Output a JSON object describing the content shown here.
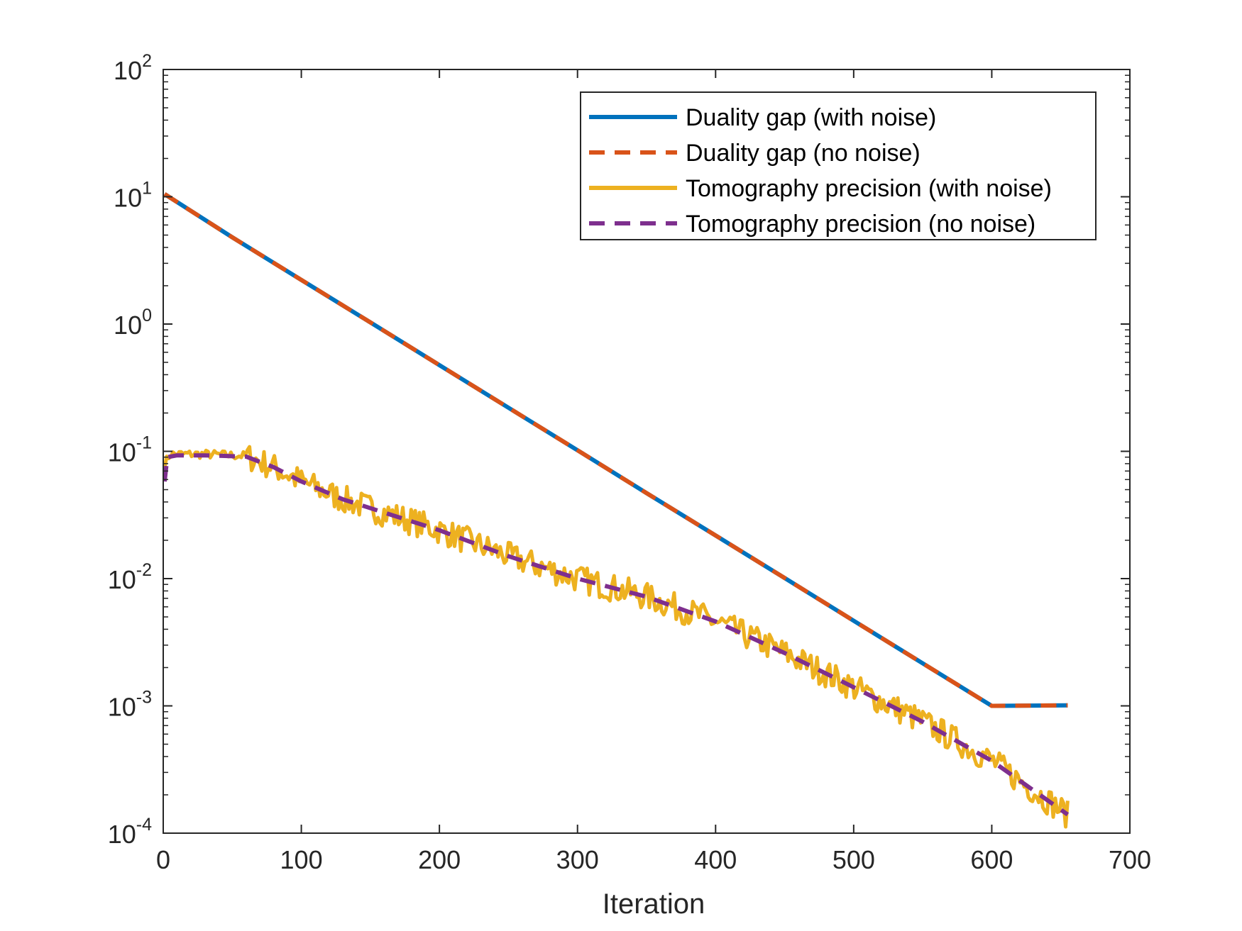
{
  "chart_data": {
    "type": "line",
    "title": "",
    "xlabel": "Iteration",
    "ylabel": "",
    "xlim": [
      0,
      700
    ],
    "ylim": [
      0.0001,
      100
    ],
    "yscale": "log",
    "x_ticks": [
      {
        "value": 0,
        "label": "0"
      },
      {
        "value": 100,
        "label": "100"
      },
      {
        "value": 200,
        "label": "200"
      },
      {
        "value": 300,
        "label": "300"
      },
      {
        "value": 400,
        "label": "400"
      },
      {
        "value": 500,
        "label": "500"
      },
      {
        "value": 600,
        "label": "600"
      },
      {
        "value": 700,
        "label": "700"
      }
    ],
    "y_ticks": [
      {
        "value": 100,
        "base": "10",
        "exp": "2"
      },
      {
        "value": 10,
        "base": "10",
        "exp": "1"
      },
      {
        "value": 1,
        "base": "10",
        "exp": "0"
      },
      {
        "value": 0.1,
        "base": "10",
        "exp": "-1"
      },
      {
        "value": 0.01,
        "base": "10",
        "exp": "-2"
      },
      {
        "value": 0.001,
        "base": "10",
        "exp": "-3"
      },
      {
        "value": 0.0001,
        "base": "10",
        "exp": "-4"
      }
    ],
    "grid": false,
    "legend_position": "top-right",
    "series": [
      {
        "name": "Duality gap (with noise)",
        "color": "#0072BD",
        "style": "solid",
        "x": [
          1,
          50,
          100,
          150,
          200,
          250,
          300,
          350,
          400,
          450,
          500,
          550,
          600,
          655
        ],
        "y": [
          10.5,
          4.8,
          2.22,
          1.03,
          0.476,
          0.22,
          0.102,
          0.047,
          0.0218,
          0.0101,
          0.00466,
          0.00216,
          0.001,
          0.00101
        ]
      },
      {
        "name": "Duality gap (no noise)",
        "color": "#D95319",
        "style": "dashed",
        "x": [
          1,
          50,
          100,
          150,
          200,
          250,
          300,
          350,
          400,
          450,
          500,
          550,
          600,
          655
        ],
        "y": [
          10.5,
          4.8,
          2.22,
          1.03,
          0.476,
          0.22,
          0.102,
          0.047,
          0.0218,
          0.0101,
          0.00466,
          0.00216,
          0.001,
          0.00101
        ]
      },
      {
        "name": "Tomography precision (with noise)",
        "color": "#EDB120",
        "style": "solid",
        "noisy": true,
        "x": [
          1,
          5,
          30,
          60,
          80,
          100,
          130,
          160,
          200,
          250,
          300,
          350,
          400,
          450,
          500,
          550,
          600,
          655
        ],
        "y": [
          0.08,
          0.095,
          0.095,
          0.092,
          0.075,
          0.058,
          0.042,
          0.033,
          0.024,
          0.015,
          0.01,
          0.0072,
          0.0046,
          0.0026,
          0.0014,
          0.00075,
          0.00037,
          0.00014
        ]
      },
      {
        "name": "Tomography precision (no noise)",
        "color": "#7E2F8E",
        "style": "dashed",
        "x": [
          1,
          3,
          10,
          30,
          60,
          80,
          100,
          130,
          160,
          200,
          250,
          300,
          350,
          400,
          450,
          500,
          550,
          600,
          655
        ],
        "y": [
          0.058,
          0.09,
          0.093,
          0.093,
          0.091,
          0.075,
          0.058,
          0.042,
          0.033,
          0.024,
          0.015,
          0.01,
          0.0072,
          0.0046,
          0.0026,
          0.0014,
          0.00075,
          0.00037,
          0.00014
        ]
      }
    ]
  }
}
